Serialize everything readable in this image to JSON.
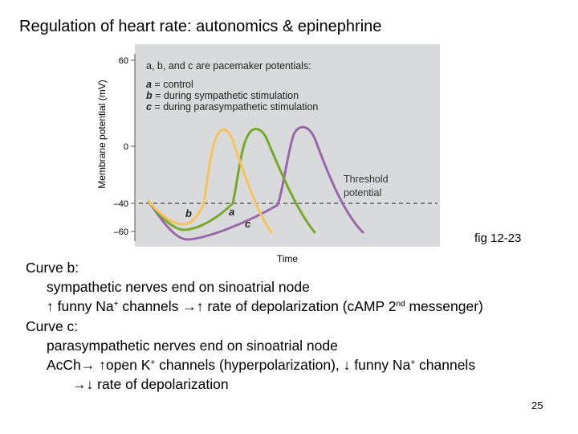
{
  "slide": {
    "title": "Regulation of heart rate: autonomics & epinephrine",
    "figure_ref": "fig 12-23",
    "page_number": "25"
  },
  "figure": {
    "y_axis_label": "Membrane potential (mV)",
    "x_axis_label": "Time",
    "y_ticks": [
      "60",
      "0",
      "–40",
      "–60"
    ],
    "legend_heading": "a, b, and c are pacemaker potentials:",
    "legend_items": [
      {
        "key": "a",
        "text": " = control"
      },
      {
        "key": "b",
        "text": " = during sympathetic stimulation"
      },
      {
        "key": "c",
        "text": " = during parasympathetic stimulation"
      }
    ],
    "threshold_label_line1": "Threshold",
    "threshold_label_line2": "potential",
    "curve_labels": {
      "a": "a",
      "b": "b",
      "c": "c"
    },
    "colors": {
      "panel_bg": "#d9dadb",
      "curve_a": "#77aa2a",
      "curve_b": "#f7c35f",
      "curve_c": "#9a68a8",
      "threshold_line": "#444444"
    }
  },
  "text": {
    "curve_b_heading": "Curve b:",
    "curve_b_line1": "sympathetic nerves end on sinoatrial node",
    "curve_b_line2_pre": "↑ funny Na",
    "curve_b_line2_sup1": "+",
    "curve_b_line2_mid": " channels →↑ rate of depolarization (cAMP 2",
    "curve_b_line2_sup2": "nd",
    "curve_b_line2_post": " messenger)",
    "curve_c_heading": "Curve c:",
    "curve_c_line1": "parasympathetic nerves end on sinoatrial node",
    "curve_c_line2_pre": "AcCh→ ↑open K",
    "curve_c_line2_sup1": "+",
    "curve_c_line2_mid": " channels (hyperpolarization), ↓ funny Na",
    "curve_c_line2_sup2": "+",
    "curve_c_line2_post": " channels",
    "curve_c_line3": "→↓ rate of depolarization"
  }
}
